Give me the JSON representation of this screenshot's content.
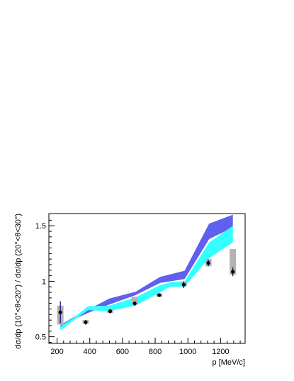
{
  "chart_data": {
    "type": "line",
    "xlabel": "p [MeV/c]",
    "ylabel": "dσ/dp (10°<θ<20°) / dσ/dp (20°<θ<30°)",
    "xlim": [
      150,
      1350
    ],
    "ylim": [
      0.44,
      1.61
    ],
    "x_ticks": [
      200,
      400,
      600,
      800,
      1000,
      1200
    ],
    "x_tick_labels": [
      "200",
      "400",
      "600",
      "800",
      "1000",
      "1200"
    ],
    "y_ticks": [
      0.5,
      1.0,
      1.5
    ],
    "y_tick_labels": [
      "0.5",
      "1",
      "1.5"
    ],
    "grid": false,
    "colors": {
      "model_blue": "#6060ee",
      "model_cyan": "#33ffff",
      "syst_box": "#b3b3b3",
      "stat_bar": "#000080",
      "data_point": "#000000"
    },
    "series": [
      {
        "kind": "band",
        "color_key": "model_blue",
        "x": [
          220,
          300,
          390,
          520,
          680,
          830,
          980,
          1130,
          1275
        ],
        "lower": [
          0.575,
          0.655,
          0.715,
          0.79,
          0.875,
          0.985,
          1.02,
          1.38,
          1.485
        ],
        "upper": [
          0.605,
          0.675,
          0.745,
          0.845,
          0.905,
          1.04,
          1.095,
          1.52,
          1.6
        ]
      },
      {
        "kind": "band",
        "color_key": "model_cyan",
        "x": [
          220,
          300,
          390,
          520,
          680,
          830,
          890,
          980,
          1130,
          1275
        ],
        "lower": [
          0.555,
          0.645,
          0.74,
          0.73,
          0.78,
          0.9,
          0.95,
          0.95,
          1.21,
          1.35
        ],
        "upper": [
          0.595,
          0.67,
          0.775,
          0.78,
          0.855,
          0.965,
          0.99,
          1.0,
          1.35,
          1.5
        ]
      },
      {
        "kind": "data",
        "x": [
          220,
          375,
          525,
          675,
          825,
          975,
          1125,
          1275
        ],
        "y": [
          0.72,
          0.63,
          0.73,
          0.8,
          0.875,
          0.97,
          1.165,
          1.085
        ],
        "stat_err": [
          0.1,
          0.02,
          0.02,
          0.02,
          0.015,
          0.03,
          0.03,
          0.04
        ],
        "syst_lo": [
          0.61,
          0.62,
          0.715,
          0.79,
          0.86,
          0.955,
          1.135,
          1.06
        ],
        "syst_hi": [
          0.78,
          0.65,
          0.75,
          0.86,
          0.89,
          0.99,
          1.2,
          1.29
        ]
      }
    ]
  }
}
